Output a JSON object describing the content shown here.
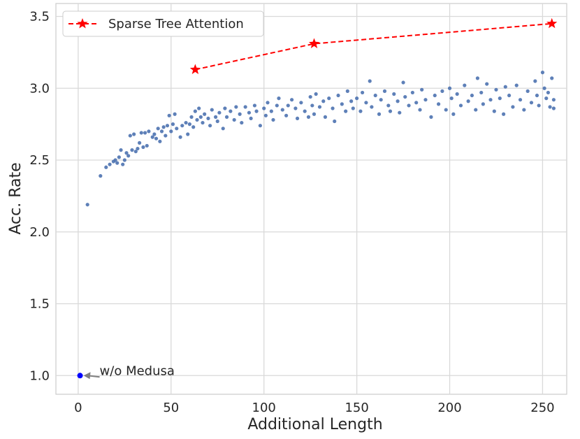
{
  "chart_data": {
    "type": "scatter",
    "xlabel": "Additional Length",
    "ylabel": "Acc. Rate",
    "xlim": [
      -12,
      263
    ],
    "ylim": [
      0.87,
      3.59
    ],
    "xticks": [
      0,
      50,
      100,
      150,
      200,
      250
    ],
    "yticks": [
      1.0,
      1.5,
      2.0,
      2.5,
      3.0,
      3.5
    ],
    "grid": true,
    "legend_placement": "top-left",
    "colors": {
      "scatter": "#4c72b0",
      "sparse_tree": "#ff0000",
      "baseline": "#0000ff",
      "arrow": "#808080"
    },
    "series": [
      {
        "type": "scatter",
        "points": [
          [
            5,
            2.19
          ],
          [
            12,
            2.39
          ],
          [
            15,
            2.45
          ],
          [
            17,
            2.47
          ],
          [
            19,
            2.49
          ],
          [
            20,
            2.5
          ],
          [
            21,
            2.48
          ],
          [
            22,
            2.52
          ],
          [
            23,
            2.57
          ],
          [
            24,
            2.47
          ],
          [
            25,
            2.5
          ],
          [
            26,
            2.55
          ],
          [
            27,
            2.53
          ],
          [
            28,
            2.67
          ],
          [
            29,
            2.57
          ],
          [
            30,
            2.68
          ],
          [
            31,
            2.56
          ],
          [
            32,
            2.58
          ],
          [
            33,
            2.62
          ],
          [
            34,
            2.69
          ],
          [
            35,
            2.59
          ],
          [
            36,
            2.69
          ],
          [
            37,
            2.6
          ],
          [
            38,
            2.7
          ],
          [
            40,
            2.66
          ],
          [
            41,
            2.68
          ],
          [
            42,
            2.65
          ],
          [
            43,
            2.72
          ],
          [
            44,
            2.63
          ],
          [
            45,
            2.7
          ],
          [
            46,
            2.73
          ],
          [
            47,
            2.67
          ],
          [
            48,
            2.74
          ],
          [
            49,
            2.81
          ],
          [
            50,
            2.7
          ],
          [
            51,
            2.75
          ],
          [
            52,
            2.82
          ],
          [
            53,
            2.72
          ],
          [
            55,
            2.66
          ],
          [
            56,
            2.74
          ],
          [
            58,
            2.76
          ],
          [
            59,
            2.68
          ],
          [
            60,
            2.75
          ],
          [
            61,
            2.8
          ],
          [
            62,
            2.73
          ],
          [
            63,
            2.84
          ],
          [
            64,
            2.78
          ],
          [
            65,
            2.86
          ],
          [
            66,
            2.8
          ],
          [
            67,
            2.76
          ],
          [
            68,
            2.82
          ],
          [
            70,
            2.79
          ],
          [
            71,
            2.74
          ],
          [
            72,
            2.85
          ],
          [
            74,
            2.8
          ],
          [
            75,
            2.77
          ],
          [
            76,
            2.83
          ],
          [
            78,
            2.72
          ],
          [
            79,
            2.86
          ],
          [
            80,
            2.8
          ],
          [
            82,
            2.84
          ],
          [
            84,
            2.78
          ],
          [
            85,
            2.87
          ],
          [
            87,
            2.82
          ],
          [
            88,
            2.76
          ],
          [
            90,
            2.87
          ],
          [
            92,
            2.83
          ],
          [
            93,
            2.79
          ],
          [
            95,
            2.88
          ],
          [
            96,
            2.84
          ],
          [
            98,
            2.74
          ],
          [
            100,
            2.86
          ],
          [
            101,
            2.81
          ],
          [
            102,
            2.9
          ],
          [
            104,
            2.84
          ],
          [
            105,
            2.78
          ],
          [
            107,
            2.88
          ],
          [
            108,
            2.93
          ],
          [
            110,
            2.85
          ],
          [
            112,
            2.81
          ],
          [
            113,
            2.88
          ],
          [
            115,
            2.92
          ],
          [
            117,
            2.86
          ],
          [
            118,
            2.79
          ],
          [
            120,
            2.9
          ],
          [
            122,
            2.84
          ],
          [
            124,
            2.8
          ],
          [
            125,
            2.94
          ],
          [
            126,
            2.88
          ],
          [
            127,
            2.82
          ],
          [
            128,
            2.96
          ],
          [
            130,
            2.87
          ],
          [
            132,
            2.91
          ],
          [
            133,
            2.8
          ],
          [
            135,
            2.93
          ],
          [
            137,
            2.86
          ],
          [
            138,
            2.77
          ],
          [
            140,
            2.95
          ],
          [
            142,
            2.89
          ],
          [
            144,
            2.84
          ],
          [
            145,
            2.98
          ],
          [
            147,
            2.91
          ],
          [
            148,
            2.86
          ],
          [
            150,
            2.93
          ],
          [
            152,
            2.84
          ],
          [
            153,
            2.97
          ],
          [
            155,
            2.9
          ],
          [
            157,
            3.05
          ],
          [
            158,
            2.87
          ],
          [
            160,
            2.95
          ],
          [
            162,
            2.82
          ],
          [
            163,
            2.92
          ],
          [
            165,
            2.98
          ],
          [
            167,
            2.88
          ],
          [
            168,
            2.84
          ],
          [
            170,
            2.96
          ],
          [
            172,
            2.91
          ],
          [
            173,
            2.83
          ],
          [
            175,
            3.04
          ],
          [
            176,
            2.94
          ],
          [
            178,
            2.88
          ],
          [
            180,
            2.97
          ],
          [
            182,
            2.9
          ],
          [
            184,
            2.85
          ],
          [
            185,
            2.99
          ],
          [
            187,
            2.92
          ],
          [
            190,
            2.8
          ],
          [
            192,
            2.95
          ],
          [
            194,
            2.89
          ],
          [
            196,
            2.98
          ],
          [
            198,
            2.85
          ],
          [
            200,
            3.0
          ],
          [
            201,
            2.93
          ],
          [
            202,
            2.82
          ],
          [
            204,
            2.96
          ],
          [
            206,
            2.88
          ],
          [
            208,
            3.02
          ],
          [
            210,
            2.91
          ],
          [
            212,
            2.95
          ],
          [
            214,
            2.85
          ],
          [
            215,
            3.07
          ],
          [
            217,
            2.97
          ],
          [
            218,
            2.89
          ],
          [
            220,
            3.03
          ],
          [
            222,
            2.92
          ],
          [
            224,
            2.84
          ],
          [
            225,
            2.99
          ],
          [
            227,
            2.93
          ],
          [
            229,
            2.82
          ],
          [
            230,
            3.01
          ],
          [
            232,
            2.95
          ],
          [
            234,
            2.87
          ],
          [
            236,
            3.02
          ],
          [
            238,
            2.92
          ],
          [
            240,
            2.85
          ],
          [
            242,
            2.98
          ],
          [
            244,
            2.9
          ],
          [
            246,
            3.05
          ],
          [
            247,
            2.95
          ],
          [
            248,
            2.88
          ],
          [
            250,
            3.11
          ],
          [
            251,
            3.0
          ],
          [
            252,
            2.93
          ],
          [
            253,
            2.97
          ],
          [
            254,
            2.87
          ],
          [
            255,
            3.07
          ],
          [
            256,
            2.86
          ],
          [
            256,
            2.92
          ]
        ]
      },
      {
        "name": "Sparse Tree Attention",
        "type": "line",
        "style": "dashed, star markers",
        "points": [
          [
            63,
            3.13
          ],
          [
            127,
            3.31
          ],
          [
            255,
            3.45
          ]
        ]
      },
      {
        "type": "scatter",
        "points": [
          [
            1,
            1.0
          ]
        ]
      }
    ],
    "annotations": [
      {
        "text": "w/o Medusa",
        "points_to": [
          1,
          1.0
        ]
      }
    ]
  }
}
